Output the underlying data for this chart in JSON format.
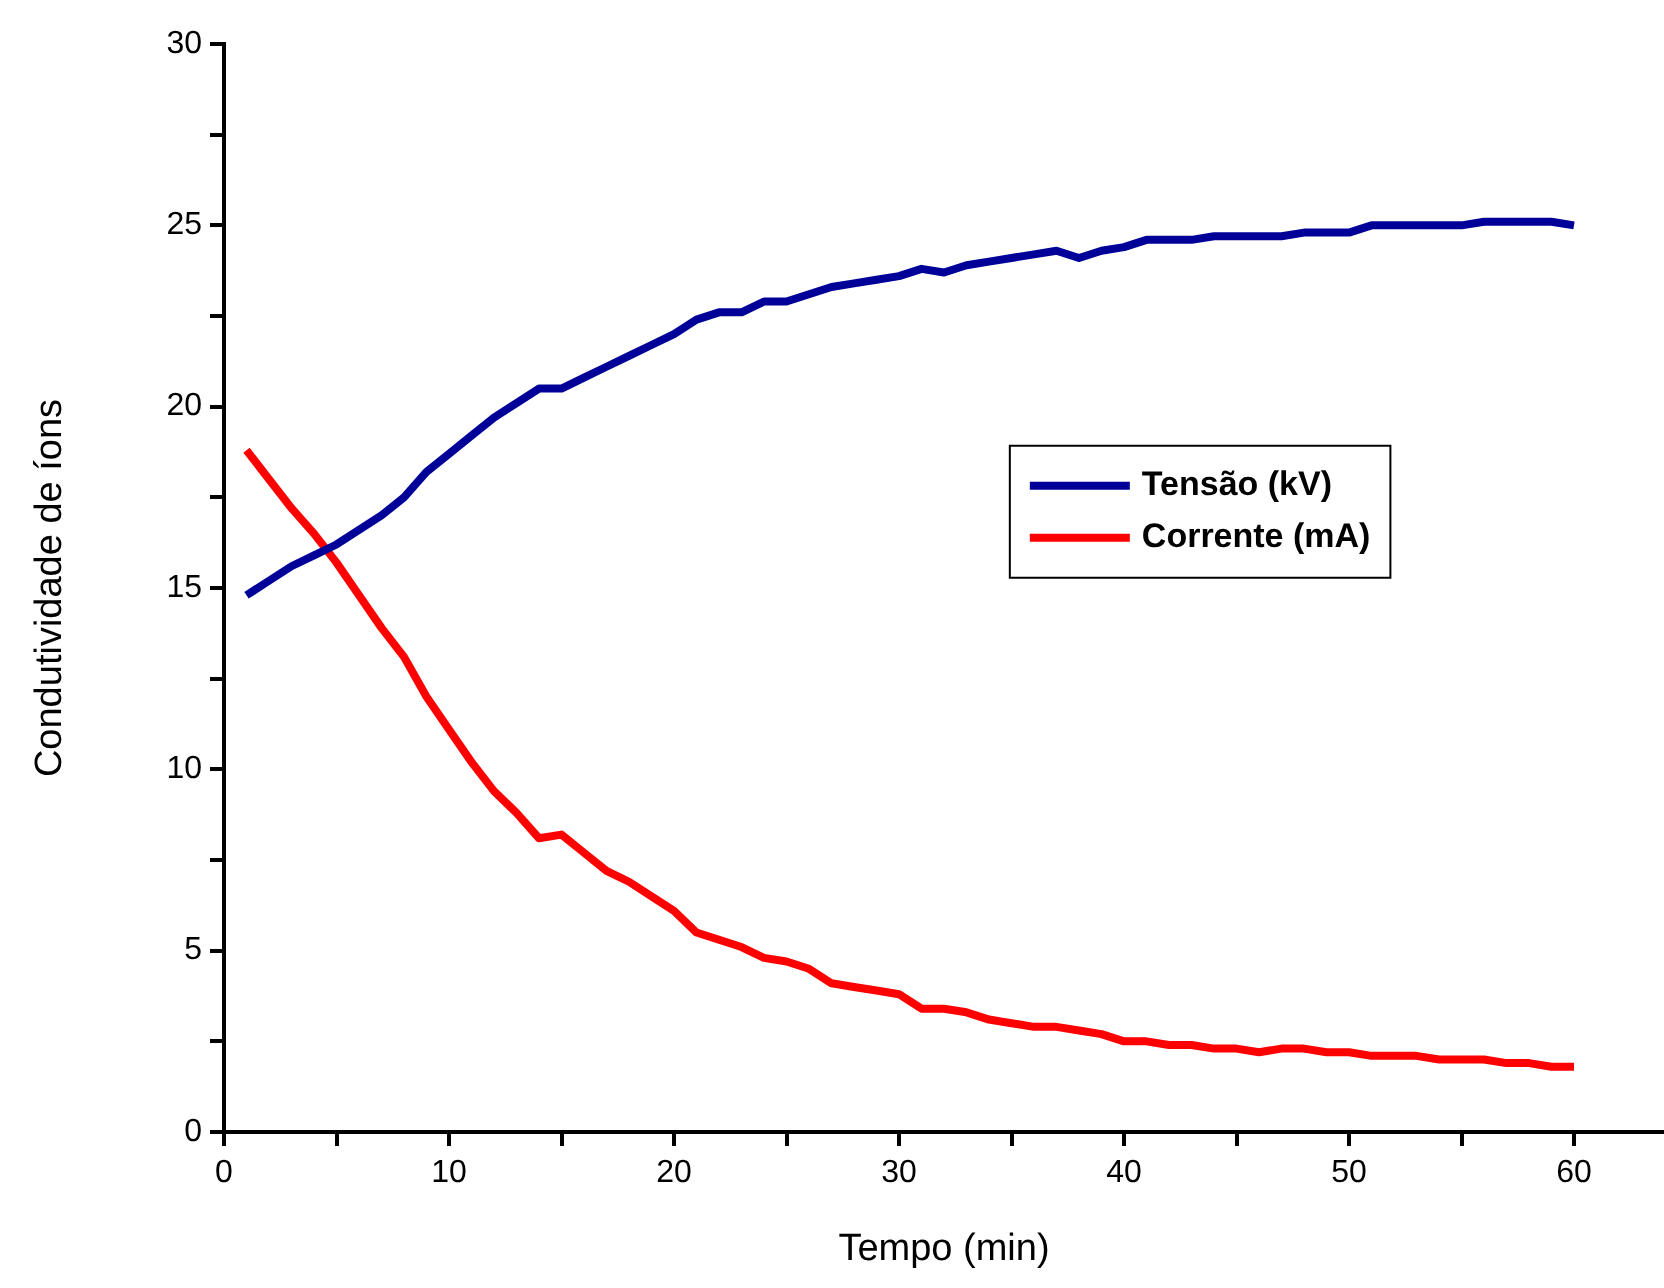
{
  "chart_data": {
    "type": "line",
    "xlabel": "Tempo (min)",
    "ylabel": "Condutividade de íons",
    "x": [
      1,
      2,
      3,
      4,
      5,
      6,
      7,
      8,
      9,
      10,
      11,
      12,
      13,
      14,
      15,
      16,
      17,
      18,
      19,
      20,
      21,
      22,
      23,
      24,
      25,
      26,
      27,
      28,
      29,
      30,
      31,
      32,
      33,
      34,
      35,
      36,
      37,
      38,
      39,
      40,
      41,
      42,
      43,
      44,
      45,
      46,
      47,
      48,
      49,
      50,
      51,
      52,
      53,
      54,
      55,
      56,
      57,
      58,
      59,
      60
    ],
    "series": [
      {
        "name": "Tensão (kV)",
        "color": "#000099",
        "values": [
          14.8,
          15.2,
          15.6,
          15.9,
          16.2,
          16.6,
          17.0,
          17.5,
          18.2,
          18.7,
          19.2,
          19.7,
          20.1,
          20.5,
          20.5,
          20.8,
          21.1,
          21.4,
          21.7,
          22.0,
          22.4,
          22.6,
          22.6,
          22.9,
          22.9,
          23.1,
          23.3,
          23.4,
          23.5,
          23.6,
          23.8,
          23.7,
          23.9,
          24.0,
          24.1,
          24.2,
          24.3,
          24.1,
          24.3,
          24.4,
          24.6,
          24.6,
          24.6,
          24.7,
          24.7,
          24.7,
          24.7,
          24.8,
          24.8,
          24.8,
          25.0,
          25.0,
          25.0,
          25.0,
          25.0,
          25.1,
          25.1,
          25.1,
          25.1,
          25.0
        ]
      },
      {
        "name": "Corrente (mA)",
        "color": "#ff0000",
        "values": [
          18.8,
          18.0,
          17.2,
          16.5,
          15.7,
          14.8,
          13.9,
          13.1,
          12.0,
          11.1,
          10.2,
          9.4,
          8.8,
          8.1,
          8.2,
          7.7,
          7.2,
          6.9,
          6.5,
          6.1,
          5.5,
          5.3,
          5.1,
          4.8,
          4.7,
          4.5,
          4.1,
          4.0,
          3.9,
          3.8,
          3.4,
          3.4,
          3.3,
          3.1,
          3.0,
          2.9,
          2.9,
          2.8,
          2.7,
          2.5,
          2.5,
          2.4,
          2.4,
          2.3,
          2.3,
          2.2,
          2.3,
          2.3,
          2.2,
          2.2,
          2.1,
          2.1,
          2.1,
          2.0,
          2.0,
          2.0,
          1.9,
          1.9,
          1.8,
          1.8
        ]
      }
    ],
    "xlim": [
      0,
      64
    ],
    "xticks": [
      0,
      {
        "value": 5,
        "label": null
      },
      10,
      {
        "value": 15,
        "label": null
      },
      20,
      {
        "value": 25,
        "label": null
      },
      30,
      {
        "value": 35,
        "label": null
      },
      40,
      {
        "value": 45,
        "label": null
      },
      50,
      {
        "value": 55,
        "label": null
      },
      60
    ],
    "ylim": [
      0,
      30
    ],
    "yticks": [
      0,
      {
        "value": 2.5,
        "label": null
      },
      5,
      {
        "value": 7.5,
        "label": null
      },
      10,
      {
        "value": 12.5,
        "label": null
      },
      15,
      {
        "value": 17.5,
        "label": null
      },
      20,
      {
        "value": 22.5,
        "label": null
      },
      25,
      {
        "value": 27.5,
        "label": null
      },
      30
    ],
    "grid": false,
    "legend": "right",
    "marker": "none",
    "line_style": "solid"
  }
}
